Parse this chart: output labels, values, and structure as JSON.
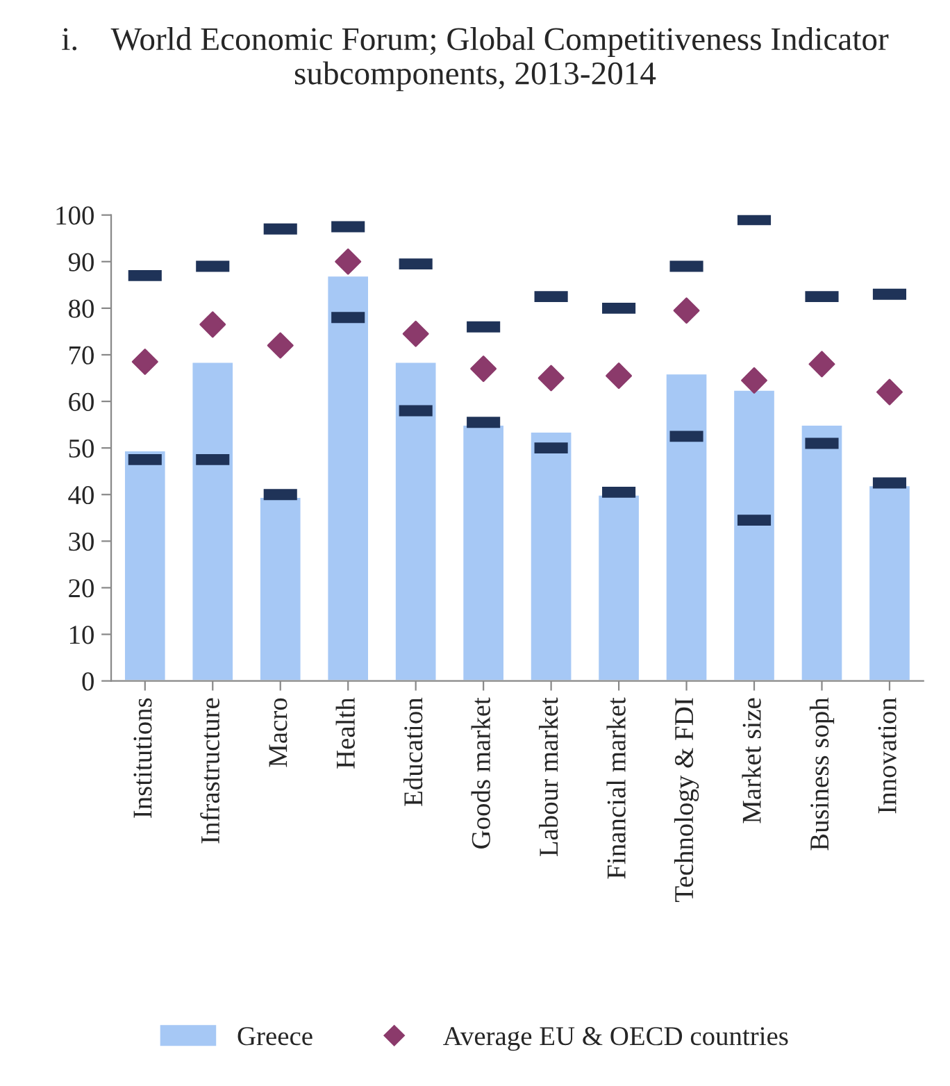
{
  "chart_data": {
    "type": "bar",
    "title": "i.    World Economic Forum; Global Competitiveness Indicator subcomponents, 2013-2014",
    "categories": [
      "Institutions",
      "Infrastructure",
      "Macro",
      "Health",
      "Education",
      "Goods market",
      "Labour market",
      "Financial market",
      "Technology & FDI",
      "Market size",
      "Business soph",
      "Innovation"
    ],
    "series": [
      {
        "name": "Greece",
        "color": "#a6c8f5",
        "values": [
          49.5,
          68.5,
          39.5,
          87,
          68.5,
          55,
          53.5,
          40,
          66,
          62.5,
          55,
          42
        ]
      },
      {
        "type": "scatter",
        "color": "#1f3358",
        "values": [
          87,
          89,
          97,
          97.5,
          89.5,
          76,
          82.5,
          80,
          89,
          99,
          82.5,
          83
        ]
      },
      {
        "type": "scatter",
        "color": "#1f3358",
        "values": [
          47.5,
          47.5,
          40,
          78,
          58,
          55.5,
          50,
          40.5,
          52.5,
          34.5,
          51,
          42.5
        ]
      },
      {
        "name": "Average EU & OECD countries",
        "type": "scatter",
        "marker": "diamond",
        "color": "#8b3a6b",
        "values": [
          68.5,
          76.5,
          72,
          90,
          74.5,
          67,
          65,
          65.5,
          79.5,
          64.5,
          68,
          62
        ]
      }
    ],
    "ylim": [
      0,
      100
    ],
    "yticks": [
      0,
      10,
      20,
      30,
      40,
      50,
      60,
      70,
      80,
      90,
      100
    ],
    "grid": false,
    "legend": "bottom"
  }
}
